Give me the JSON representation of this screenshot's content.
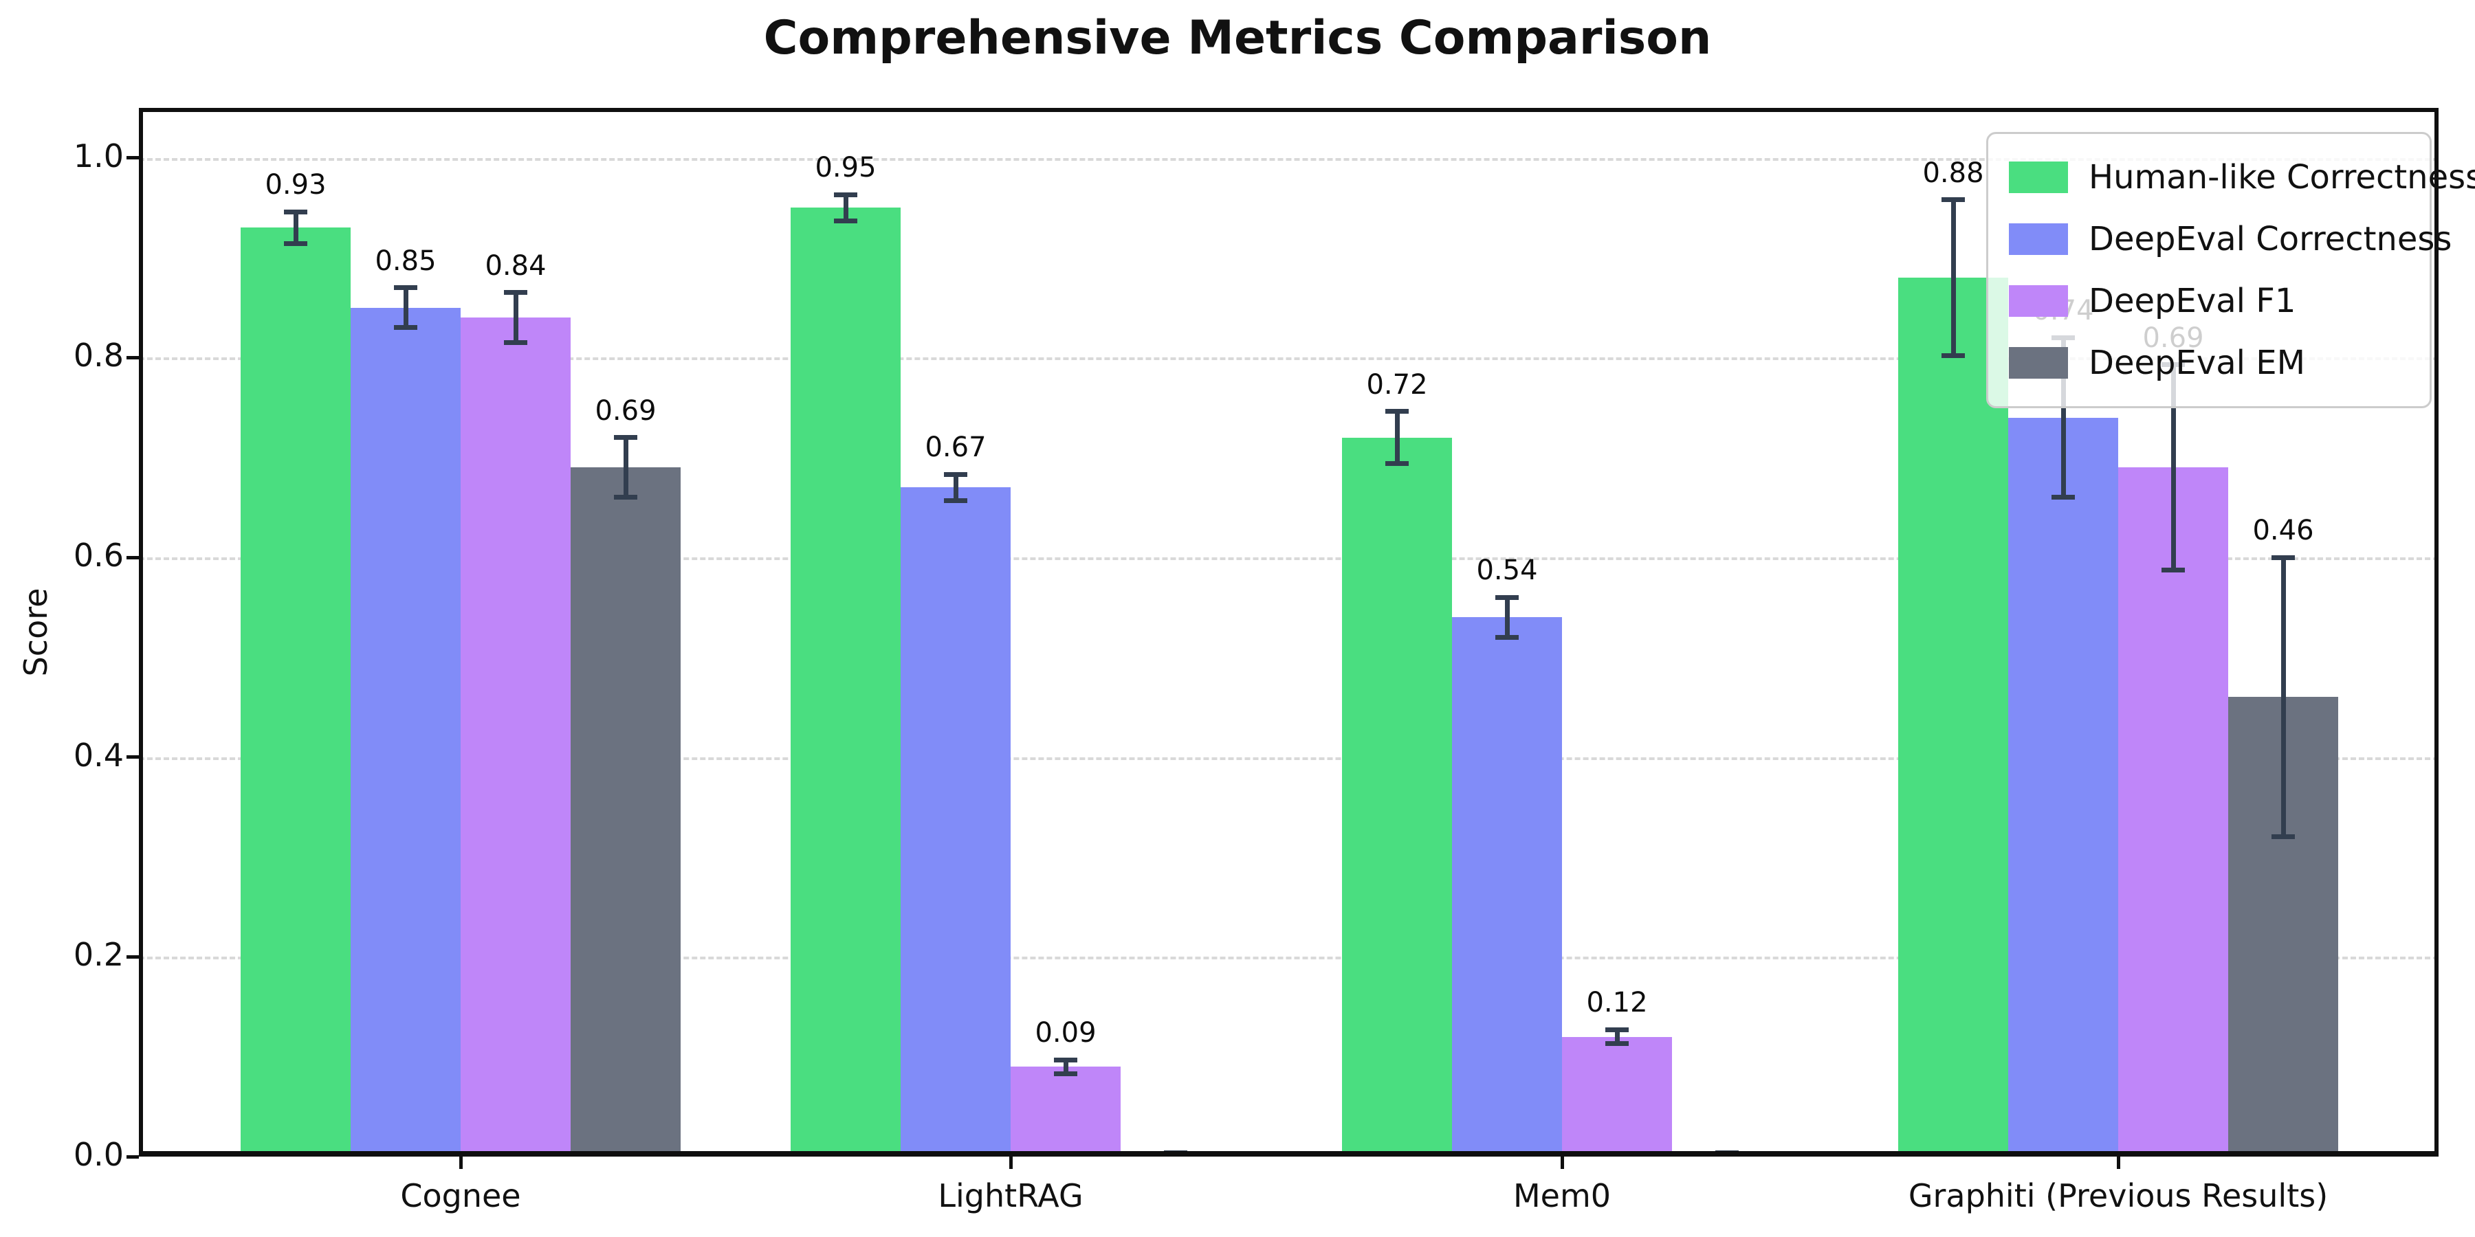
{
  "chart_data": {
    "type": "bar",
    "title": "Comprehensive Metrics Comparison",
    "ylabel": "Score",
    "categories": [
      "Cognee",
      "LightRAG",
      "Mem0",
      "Graphiti (Previous Results)"
    ],
    "series": [
      {
        "name": "Human-like Correctness",
        "color": "#4ade80",
        "values": [
          0.93,
          0.95,
          0.72,
          0.88
        ],
        "errors": [
          0.016,
          0.013,
          0.026,
          0.078
        ],
        "bar_labels": [
          "0.93",
          "0.95",
          "0.72",
          "0.88"
        ]
      },
      {
        "name": "DeepEval Correctness",
        "color": "#818cf8",
        "values": [
          0.85,
          0.67,
          0.54,
          0.74
        ],
        "errors": [
          0.02,
          0.013,
          0.02,
          0.08
        ],
        "bar_labels": [
          "0.85",
          "0.67",
          "0.54",
          "0.74"
        ]
      },
      {
        "name": "DeepEval F1",
        "color": "#bf86f9",
        "values": [
          0.84,
          0.09,
          0.12,
          0.69
        ],
        "errors": [
          0.025,
          0.007,
          0.007,
          0.103
        ],
        "bar_labels": [
          "0.84",
          "0.09",
          "0.12",
          "0.69"
        ]
      },
      {
        "name": "DeepEval EM",
        "color": "#6b7280",
        "values": [
          0.69,
          0.0,
          0.0,
          0.46
        ],
        "errors": [
          0.03,
          0.004,
          0.004,
          0.14
        ],
        "bar_labels": [
          "0.69",
          "",
          "",
          "0.46"
        ]
      }
    ],
    "yticks": [
      "0.0",
      "0.2",
      "0.4",
      "0.6",
      "0.8",
      "1.0"
    ],
    "ylim": [
      0,
      1.05
    ],
    "grid": "horizontal-dashed",
    "gridline_color": "#d9d9d9",
    "error_bar_color": "#323e4f",
    "legend_position": "upper-right"
  }
}
